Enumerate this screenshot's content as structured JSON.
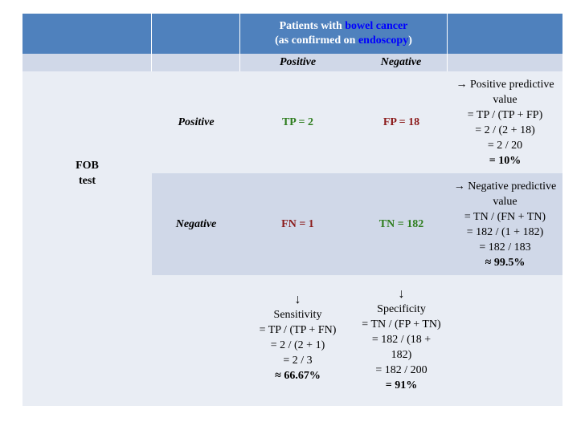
{
  "header": {
    "line1_prefix": "Patients with ",
    "line1_highlight": "bowel cancer",
    "line2_prefix": "(as confirmed on ",
    "line2_highlight": "endoscopy",
    "line2_suffix": ")"
  },
  "subheader": {
    "positive": "Positive",
    "negative": "Negative"
  },
  "fob_label": {
    "line1": "FOB",
    "line2": "test"
  },
  "rows": {
    "positive": {
      "label": "Positive",
      "tp": "TP = 2",
      "fp": "FP = 18"
    },
    "negative": {
      "label": "Negative",
      "fn": "FN = 1",
      "tn": "TN = 182"
    }
  },
  "ppv": {
    "l1": "→ Positive predictive",
    "l2": "value",
    "l3": "= TP / (TP + FP)",
    "l4": "= 2 / (2 + 18)",
    "l5": "= 2 / 20",
    "l6": "= 10%"
  },
  "npv": {
    "l1": "→ Negative predictive",
    "l2": "value",
    "l3": "= TN / (FN + TN)",
    "l4": "= 182 / (1 + 182)",
    "l5": "= 182 / 183",
    "l6": "≈ 99.5%"
  },
  "sensitivity": {
    "arrow": "↓",
    "l1": "Sensitivity",
    "l2": "= TP / (TP + FN)",
    "l3": "= 2 / (2 + 1)",
    "l4": "= 2 / 3",
    "l5": "≈ 66.67%"
  },
  "specificity": {
    "arrow": "↓",
    "l1": "Specificity",
    "l2": "= TN / (FP + TN)",
    "l3": "= 182 / (18 +",
    "l4": "182)",
    "l5": "= 182 / 200",
    "l6": "= 91%"
  },
  "colors": {
    "header": "#4f81bd",
    "subheader": "#d0d8e8",
    "light": "#e9edf4",
    "highlight": "#0000ff",
    "green": "#2e7d1e",
    "red": "#8b1a1a"
  }
}
